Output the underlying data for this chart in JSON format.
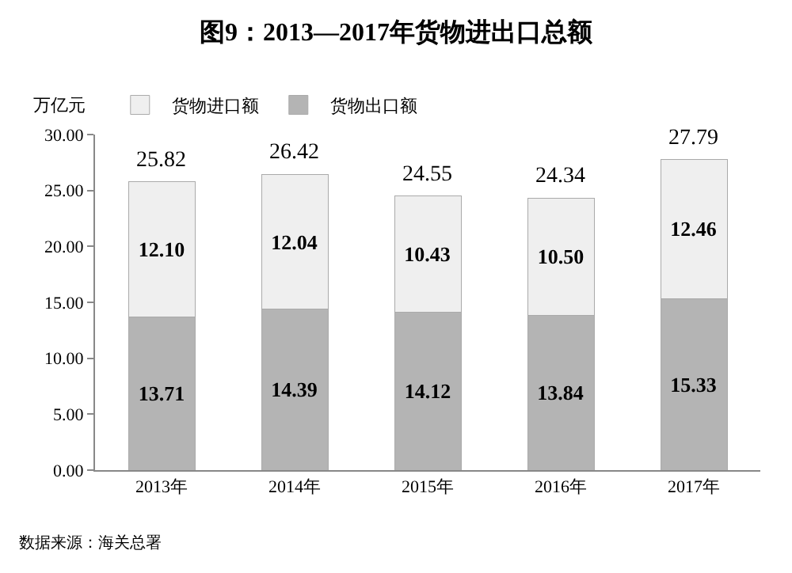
{
  "chart_data": {
    "type": "bar",
    "title": "图9：2013—2017年货物进出口总额",
    "ylabel": "万亿元",
    "categories": [
      "2013年",
      "2014年",
      "2015年",
      "2016年",
      "2017年"
    ],
    "series": [
      {
        "name": "货物出口额",
        "color": "#b4b4b4",
        "values": [
          13.71,
          14.39,
          14.12,
          13.84,
          15.33
        ],
        "value_labels": [
          "13.71",
          "14.39",
          "14.12",
          "13.84",
          "15.33"
        ]
      },
      {
        "name": "货物进口额",
        "color": "#efefef",
        "values": [
          12.1,
          12.04,
          10.43,
          10.5,
          12.46
        ],
        "value_labels": [
          "12.10",
          "12.04",
          "10.43",
          "10.50",
          "12.46"
        ]
      }
    ],
    "stacked": true,
    "totals": [
      "25.82",
      "26.42",
      "24.55",
      "24.34",
      "27.79"
    ],
    "ylim": [
      0,
      30
    ],
    "yticks": [
      {
        "value": 0,
        "label": "0.00"
      },
      {
        "value": 5,
        "label": "5.00"
      },
      {
        "value": 10,
        "label": "10.00"
      },
      {
        "value": 15,
        "label": "15.00"
      },
      {
        "value": 20,
        "label": "20.00"
      },
      {
        "value": 25,
        "label": "25.00"
      },
      {
        "value": 30,
        "label": "30.00"
      }
    ],
    "grid": false,
    "legend": "top left",
    "annotations": [
      "数据来源：海关总署"
    ]
  }
}
